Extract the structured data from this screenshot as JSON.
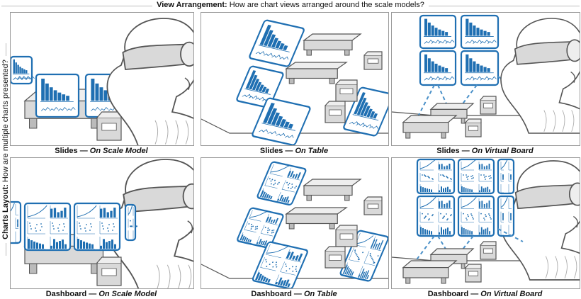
{
  "header": {
    "column_title_bold": "View Arrangement:",
    "column_title_text": "How are chart views arranged around the scale models?",
    "row_title_bold": "Charts Layout:",
    "row_title_text": "How are multiple charts presented?"
  },
  "panels": [
    {
      "layout": "Slides",
      "sep": " — ",
      "placement": "On Scale Model"
    },
    {
      "layout": "Slides",
      "sep": " — ",
      "placement": "On Table"
    },
    {
      "layout": "Slides",
      "sep": " — ",
      "placement": "On Virtual Board"
    },
    {
      "layout": "Dashboard",
      "sep": " — ",
      "placement": "On Scale Model"
    },
    {
      "layout": "Dashboard",
      "sep": " — ",
      "placement": "On Table"
    },
    {
      "layout": "Dashboard",
      "sep": " — ",
      "placement": "On Virtual Board"
    }
  ],
  "colors": {
    "chart_blue": "#1f6fb2",
    "line_gray": "#555555",
    "fill_gray": "#d9d9d9",
    "panel_border": "#9a9a9a"
  }
}
